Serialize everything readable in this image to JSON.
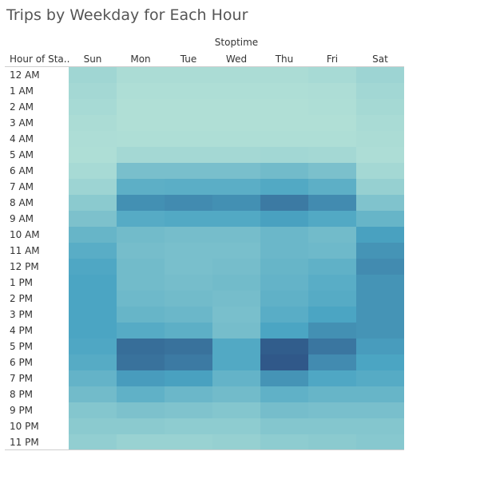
{
  "chart_data": {
    "type": "heatmap",
    "title": "Trips by Weekday for Each Hour",
    "column_field": "Stoptime",
    "row_field": "Hour of Sta..",
    "columns": [
      "Sun",
      "Mon",
      "Tue",
      "Wed",
      "Thu",
      "Fri",
      "Sat"
    ],
    "rows": [
      "12 AM",
      "1 AM",
      "2 AM",
      "3 AM",
      "4 AM",
      "5 AM",
      "6 AM",
      "7 AM",
      "8 AM",
      "9 AM",
      "10 AM",
      "11 AM",
      "12 PM",
      "1 PM",
      "2 PM",
      "3 PM",
      "4 PM",
      "5 PM",
      "6 PM",
      "7 PM",
      "8 PM",
      "9 PM",
      "10 PM",
      "11 PM"
    ],
    "values": [
      [
        0.14,
        0.08,
        0.08,
        0.08,
        0.08,
        0.1,
        0.16
      ],
      [
        0.12,
        0.06,
        0.06,
        0.06,
        0.06,
        0.07,
        0.13
      ],
      [
        0.1,
        0.05,
        0.05,
        0.05,
        0.05,
        0.06,
        0.11
      ],
      [
        0.08,
        0.05,
        0.05,
        0.05,
        0.05,
        0.05,
        0.09
      ],
      [
        0.07,
        0.06,
        0.06,
        0.06,
        0.06,
        0.06,
        0.08
      ],
      [
        0.06,
        0.12,
        0.12,
        0.12,
        0.13,
        0.12,
        0.07
      ],
      [
        0.1,
        0.36,
        0.36,
        0.36,
        0.4,
        0.35,
        0.12
      ],
      [
        0.16,
        0.52,
        0.53,
        0.53,
        0.58,
        0.52,
        0.2
      ],
      [
        0.26,
        0.72,
        0.74,
        0.72,
        0.82,
        0.74,
        0.32
      ],
      [
        0.34,
        0.56,
        0.58,
        0.58,
        0.64,
        0.58,
        0.46
      ],
      [
        0.46,
        0.4,
        0.38,
        0.38,
        0.44,
        0.4,
        0.64
      ],
      [
        0.54,
        0.38,
        0.36,
        0.36,
        0.44,
        0.42,
        0.7
      ],
      [
        0.6,
        0.4,
        0.36,
        0.38,
        0.46,
        0.5,
        0.74
      ],
      [
        0.62,
        0.4,
        0.38,
        0.4,
        0.48,
        0.54,
        0.7
      ],
      [
        0.62,
        0.42,
        0.4,
        0.38,
        0.5,
        0.56,
        0.7
      ],
      [
        0.62,
        0.46,
        0.44,
        0.36,
        0.54,
        0.62,
        0.7
      ],
      [
        0.62,
        0.56,
        0.52,
        0.38,
        0.62,
        0.72,
        0.7
      ],
      [
        0.6,
        0.88,
        0.86,
        0.58,
        0.96,
        0.84,
        0.66
      ],
      [
        0.56,
        0.86,
        0.82,
        0.58,
        0.98,
        0.74,
        0.62
      ],
      [
        0.48,
        0.66,
        0.64,
        0.48,
        0.7,
        0.6,
        0.56
      ],
      [
        0.4,
        0.5,
        0.44,
        0.4,
        0.5,
        0.46,
        0.46
      ],
      [
        0.3,
        0.34,
        0.32,
        0.3,
        0.38,
        0.36,
        0.36
      ],
      [
        0.26,
        0.26,
        0.24,
        0.24,
        0.3,
        0.3,
        0.3
      ],
      [
        0.22,
        0.18,
        0.18,
        0.2,
        0.24,
        0.26,
        0.28
      ]
    ],
    "color_scale": {
      "low": "#b9e4d8",
      "high": "#2e5486"
    }
  }
}
